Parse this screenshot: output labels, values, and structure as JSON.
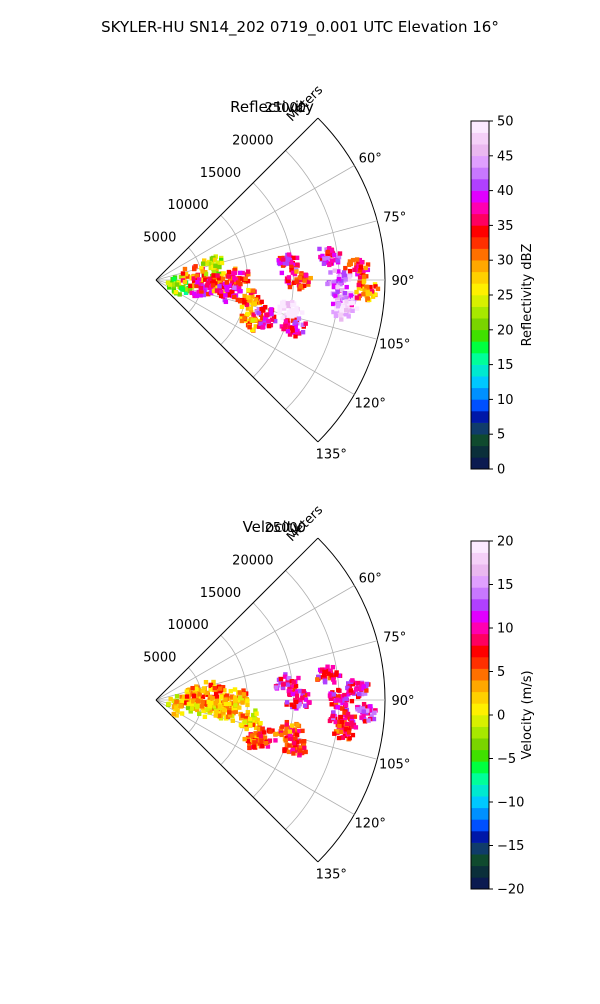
{
  "figure": {
    "title": "SKYLER-HU  SN14_202  0719_0.001 UTC Elevation 16°"
  },
  "chart_data": [
    {
      "type": "heatmap",
      "projection": "polar-sector",
      "title": "Reflectivity",
      "range_label": "Meters",
      "theta_range_deg": [
        45,
        135
      ],
      "r_max": 25000,
      "r_ticks": [
        5000,
        10000,
        15000,
        20000,
        25000
      ],
      "theta_ticks": [
        "60°",
        "75°",
        "90°",
        "105°",
        "120°",
        "135°"
      ],
      "theta_tick_values": [
        60,
        75,
        90,
        105,
        120,
        135
      ],
      "grid": true,
      "colorbar": {
        "label": "Reflectivity dBZ",
        "range": [
          0,
          50
        ],
        "ticks": [
          0,
          5,
          10,
          15,
          20,
          25,
          30,
          35,
          40,
          45,
          50
        ],
        "colors": [
          "#0b1a50",
          "#0b2f3a",
          "#0f4a2e",
          "#103c6a",
          "#0018a8",
          "#0050ff",
          "#0090ff",
          "#00c8ff",
          "#00e8d0",
          "#00ff9a",
          "#00ff40",
          "#40e000",
          "#7ad400",
          "#a8e800",
          "#d8f000",
          "#fff000",
          "#ffd000",
          "#ffa800",
          "#ff7000",
          "#ff3000",
          "#ff0000",
          "#ff0060",
          "#ff00b0",
          "#e000ff",
          "#b040ff",
          "#c878ff",
          "#e0a0ff",
          "#eab8f0",
          "#f4d0f8",
          "#fbeaff"
        ]
      },
      "echoes": [
        {
          "r": 2600,
          "theta": 103,
          "level": 12
        },
        {
          "r": 4200,
          "theta": 84,
          "level": 18
        },
        {
          "r": 5200,
          "theta": 100,
          "level": 22
        },
        {
          "r": 6500,
          "theta": 77,
          "level": 14
        },
        {
          "r": 7000,
          "theta": 93,
          "level": 18
        },
        {
          "r": 8000,
          "theta": 100,
          "level": 22
        },
        {
          "r": 9000,
          "theta": 89,
          "level": 20
        },
        {
          "r": 10500,
          "theta": 102,
          "level": 18
        },
        {
          "r": 11500,
          "theta": 113,
          "level": 17
        },
        {
          "r": 12500,
          "theta": 109,
          "level": 22
        },
        {
          "r": 15000,
          "theta": 103,
          "level": 30
        },
        {
          "r": 16000,
          "theta": 109,
          "level": 22
        },
        {
          "r": 14500,
          "theta": 83,
          "level": 22
        },
        {
          "r": 15500,
          "theta": 90,
          "level": 20
        },
        {
          "r": 19000,
          "theta": 82,
          "level": 22
        },
        {
          "r": 20000,
          "theta": 90,
          "level": 25
        },
        {
          "r": 20500,
          "theta": 96,
          "level": 25
        },
        {
          "r": 21000,
          "theta": 99,
          "level": 28
        },
        {
          "r": 22000,
          "theta": 87,
          "level": 20
        },
        {
          "r": 23000,
          "theta": 93,
          "level": 18
        }
      ]
    },
    {
      "type": "heatmap",
      "projection": "polar-sector",
      "title": "Velocity",
      "range_label": "Meters",
      "theta_range_deg": [
        45,
        135
      ],
      "r_max": 25000,
      "r_ticks": [
        5000,
        10000,
        15000,
        20000,
        25000
      ],
      "theta_ticks": [
        "60°",
        "75°",
        "90°",
        "105°",
        "120°",
        "135°"
      ],
      "theta_tick_values": [
        60,
        75,
        90,
        105,
        120,
        135
      ],
      "grid": true,
      "colorbar": {
        "label": "Velocity (m/s)",
        "range": [
          -20,
          20
        ],
        "ticks": [
          -20,
          -15,
          -10,
          -5,
          0,
          5,
          10,
          15,
          20
        ],
        "colors": [
          "#0b1a50",
          "#0b2f3a",
          "#0f4a2e",
          "#103c6a",
          "#0018a8",
          "#0050ff",
          "#0090ff",
          "#00c8ff",
          "#00e8d0",
          "#00ff9a",
          "#00ff40",
          "#40e000",
          "#7ad400",
          "#a8e800",
          "#d8f000",
          "#fff000",
          "#ffd000",
          "#ffa800",
          "#ff7000",
          "#ff3000",
          "#ff0000",
          "#ff0060",
          "#ff00b0",
          "#e000ff",
          "#b040ff",
          "#c878ff",
          "#e0a0ff",
          "#eab8f0",
          "#f4d0f8",
          "#fbeaff"
        ]
      },
      "echoes": [
        {
          "r": 2600,
          "theta": 103,
          "level": 15
        },
        {
          "r": 4200,
          "theta": 84,
          "level": 17
        },
        {
          "r": 5200,
          "theta": 100,
          "level": 16
        },
        {
          "r": 6500,
          "theta": 80,
          "level": 18
        },
        {
          "r": 7000,
          "theta": 93,
          "level": 17
        },
        {
          "r": 8000,
          "theta": 100,
          "level": 16
        },
        {
          "r": 9000,
          "theta": 89,
          "level": 17
        },
        {
          "r": 10500,
          "theta": 102,
          "level": 16
        },
        {
          "r": 11500,
          "theta": 113,
          "level": 19
        },
        {
          "r": 12500,
          "theta": 109,
          "level": 19
        },
        {
          "r": 15000,
          "theta": 103,
          "level": 19
        },
        {
          "r": 16000,
          "theta": 109,
          "level": 20
        },
        {
          "r": 14500,
          "theta": 83,
          "level": 22
        },
        {
          "r": 15500,
          "theta": 90,
          "level": 22
        },
        {
          "r": 19000,
          "theta": 82,
          "level": 21
        },
        {
          "r": 20000,
          "theta": 90,
          "level": 21
        },
        {
          "r": 20500,
          "theta": 96,
          "level": 22
        },
        {
          "r": 21000,
          "theta": 99,
          "level": 20
        },
        {
          "r": 22000,
          "theta": 87,
          "level": 22
        },
        {
          "r": 23000,
          "theta": 93,
          "level": 23
        }
      ]
    }
  ]
}
